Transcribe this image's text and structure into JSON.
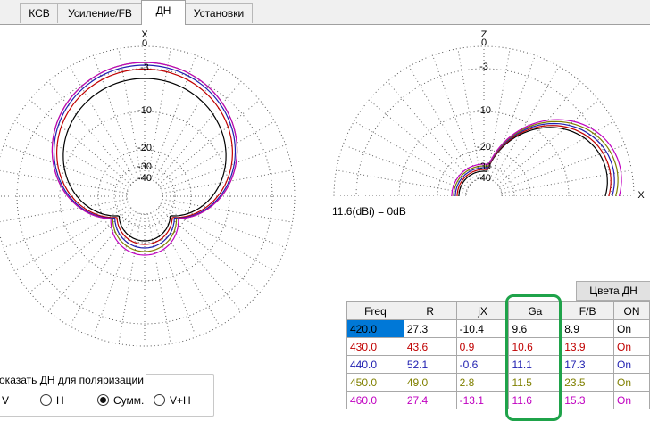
{
  "tabs": [
    "КСВ",
    "Усиление/FB",
    "ДН",
    "Установки"
  ],
  "active_tab": 2,
  "left_pattern": {
    "top_label": "X",
    "ring_labels": [
      "0",
      "-3",
      "-10",
      "-20",
      "-30",
      "-40"
    ]
  },
  "right_pattern": {
    "top_label": "Z",
    "ring_labels": [
      "0",
      "-3",
      "-10",
      "-20",
      "-30",
      "-40"
    ],
    "right_label": "X"
  },
  "scale_note": "11.6(dBi) = 0dB",
  "colors_button": "Цвета ДН",
  "table": {
    "headers": [
      "Freq",
      "R",
      "jX",
      "Ga",
      "F/B",
      "ON"
    ],
    "rows": [
      {
        "freq": "420.0",
        "r": "27.3",
        "jx": "-10.4",
        "ga": "9.6",
        "fb": "8.9",
        "on": "On",
        "color": "#000000"
      },
      {
        "freq": "430.0",
        "r": "43.6",
        "jx": "0.9",
        "ga": "10.6",
        "fb": "13.9",
        "on": "On",
        "color": "#c00000"
      },
      {
        "freq": "440.0",
        "r": "52.1",
        "jx": "-0.6",
        "ga": "11.1",
        "fb": "17.3",
        "on": "On",
        "color": "#1f1fb0"
      },
      {
        "freq": "450.0",
        "r": "49.0",
        "jx": "2.8",
        "ga": "11.5",
        "fb": "23.5",
        "on": "On",
        "color": "#808000"
      },
      {
        "freq": "460.0",
        "r": "27.4",
        "jx": "-13.1",
        "ga": "11.6",
        "fb": "15.3",
        "on": "On",
        "color": "#c000c0"
      }
    ],
    "selected_row": 0
  },
  "polarization": {
    "title": "оказать ДН для поляризации",
    "options": [
      "V",
      "H",
      "Сумм.",
      "V+H"
    ],
    "selected": "Сумм."
  },
  "series_colors": [
    "#000000",
    "#c00000",
    "#1f1fb0",
    "#808000",
    "#c000c0"
  ]
}
